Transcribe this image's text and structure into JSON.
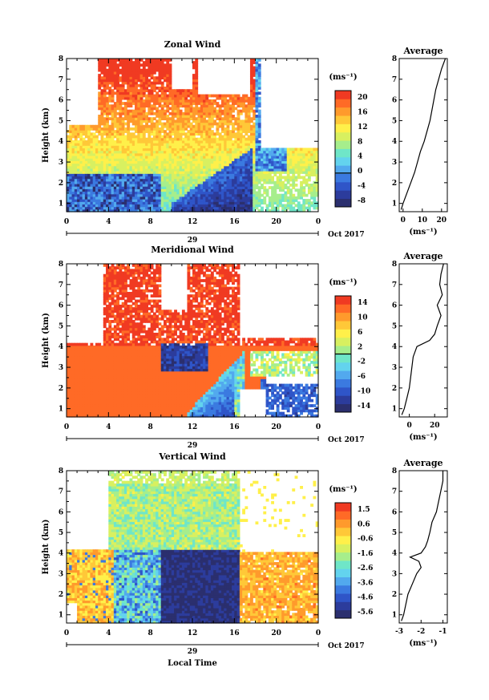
{
  "chart_data": [
    {
      "type": "heatmap",
      "title": "Zonal Wind",
      "ylabel": "Height (km)",
      "xlabel": "",
      "x_ticks": [
        "0",
        "4",
        "8",
        "12",
        "16",
        "20",
        "0"
      ],
      "y_ticks": [
        "1",
        "2",
        "3",
        "4",
        "5",
        "6",
        "7",
        "8"
      ],
      "xlim": [
        0,
        24
      ],
      "ylim": [
        0.6,
        8
      ],
      "date_day": "29",
      "date_suffix": "Oct 2017",
      "colorbar": {
        "unit": "(ms⁻¹)",
        "ticks": [
          "20",
          "16",
          "12",
          "8",
          "4",
          "0",
          "-4",
          "-8"
        ],
        "range": [
          -9,
          22
        ],
        "zero_line": 0
      },
      "average_profile": {
        "title": "Average",
        "unit": "(ms⁻¹)",
        "x_ticks": [
          "0",
          "10",
          "20"
        ],
        "xlim": [
          -2,
          23
        ],
        "heights": [
          0.7,
          1.0,
          1.5,
          2.0,
          2.5,
          3.0,
          3.5,
          4.0,
          4.5,
          5.0,
          5.5,
          6.0,
          6.5,
          7.0,
          7.5,
          8.0
        ],
        "values": [
          -1,
          0,
          2,
          4,
          6,
          7.5,
          9,
          11,
          12.5,
          14,
          15,
          16,
          17,
          18.5,
          20,
          22
        ]
      }
    },
    {
      "type": "heatmap",
      "title": "Meridional Wind",
      "ylabel": "Height (km)",
      "xlabel": "",
      "x_ticks": [
        "0",
        "4",
        "8",
        "12",
        "16",
        "20",
        "0"
      ],
      "y_ticks": [
        "1",
        "2",
        "3",
        "4",
        "5",
        "6",
        "7",
        "8"
      ],
      "xlim": [
        0,
        24
      ],
      "ylim": [
        0.6,
        8
      ],
      "date_day": "29",
      "date_suffix": "Oct 2017",
      "colorbar": {
        "unit": "(ms⁻¹)",
        "ticks": [
          "14",
          "10",
          "6",
          "2",
          "-2",
          "-6",
          "-10",
          "-14"
        ],
        "range": [
          -16,
          16
        ],
        "zero_line": 0
      },
      "average_profile": {
        "title": "Average",
        "unit": "(ms⁻¹)",
        "x_ticks": [
          "0",
          "20"
        ],
        "xlim": [
          -8,
          30
        ],
        "heights": [
          0.7,
          1.0,
          1.5,
          2.0,
          2.5,
          3.0,
          3.5,
          4.0,
          4.3,
          4.6,
          5.0,
          5.5,
          6.0,
          6.5,
          7.0,
          7.5,
          8.0
        ],
        "values": [
          -6,
          -4,
          -2,
          0,
          1,
          2,
          3,
          6,
          16,
          20,
          22,
          25,
          22,
          26,
          24,
          25,
          27
        ]
      }
    },
    {
      "type": "heatmap",
      "title": "Vertical Wind",
      "ylabel": "Height (km)",
      "xlabel": "Local Time",
      "x_ticks": [
        "0",
        "4",
        "8",
        "12",
        "16",
        "20",
        "0"
      ],
      "y_ticks": [
        "1",
        "2",
        "3",
        "4",
        "5",
        "6",
        "7",
        "8"
      ],
      "xlim": [
        0,
        24
      ],
      "ylim": [
        0.6,
        8
      ],
      "date_day": "29",
      "date_suffix": "Oct 2017",
      "colorbar": {
        "unit": "(ms⁻¹)",
        "ticks": [
          "1.5",
          "0.6",
          "-0.6",
          "-1.6",
          "-2.6",
          "-3.6",
          "-4.6",
          "-5.6"
        ],
        "range": [
          -6,
          2
        ],
        "zero_line": null
      },
      "average_profile": {
        "title": "Average",
        "unit": "(ms⁻¹)",
        "x_ticks": [
          "-3",
          "-2",
          "-1"
        ],
        "xlim": [
          -3,
          -0.8
        ],
        "heights": [
          0.7,
          1.0,
          1.5,
          2.0,
          2.5,
          3.0,
          3.3,
          3.6,
          3.8,
          4.0,
          4.3,
          4.6,
          5.0,
          5.5,
          6.0,
          6.5,
          7.0,
          7.5,
          8.0
        ],
        "values": [
          -2.9,
          -2.8,
          -2.7,
          -2.6,
          -2.4,
          -2.2,
          -2.0,
          -2.1,
          -2.5,
          -2.0,
          -1.8,
          -1.7,
          -1.6,
          -1.5,
          -1.3,
          -1.2,
          -1.1,
          -1.0,
          -1.0
        ]
      }
    }
  ]
}
